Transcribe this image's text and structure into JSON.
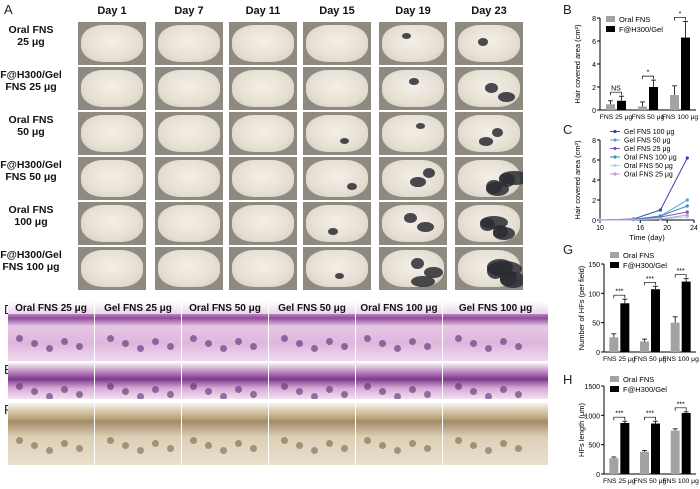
{
  "panel_letters": {
    "A": "A",
    "B": "B",
    "C": "C",
    "D": "D",
    "E": "E",
    "F": "F",
    "G": "G",
    "H": "H"
  },
  "days": [
    "Day 1",
    "Day 7",
    "Day 11",
    "Day 15",
    "Day 19",
    "Day 23"
  ],
  "row_labels": [
    [
      "Oral FNS",
      "25 μg"
    ],
    [
      "F@H300/Gel",
      "FNS 25 μg"
    ],
    [
      "Oral FNS",
      "50 μg"
    ],
    [
      "F@H300/Gel",
      "FNS 50 μg"
    ],
    [
      "Oral FNS",
      "100 μg"
    ],
    [
      "F@H300/Gel",
      "FNS 100 μg"
    ]
  ],
  "hair_cover_fraction": [
    [
      0,
      0,
      0,
      0,
      0.05,
      0.15
    ],
    [
      0,
      0,
      0,
      0,
      0.12,
      0.3
    ],
    [
      0,
      0,
      0,
      0.06,
      0.05,
      0.2
    ],
    [
      0,
      0,
      0,
      0.12,
      0.28,
      0.5
    ],
    [
      0,
      0,
      0,
      0.1,
      0.3,
      0.45
    ],
    [
      0,
      0,
      0,
      0.08,
      0.35,
      0.6
    ]
  ],
  "histology_labels": [
    "Oral FNS 25 μg",
    "Gel FNS 25 μg",
    "Oral FNS 50 μg",
    "Gel FNS 50 μg",
    "Oral FNS 100 μg",
    "Gel FNS 100 μg"
  ],
  "colors": {
    "oral": "#a3a3a3",
    "gel": "#000000",
    "he_stain": "#c89bc6",
    "ihc_stain": "#d6c7ad"
  },
  "chart_data": [
    {
      "panel": "B",
      "type": "bar",
      "categories": [
        "FNS 25 μg",
        "FNS 50 μg",
        "FNS 100 μg"
      ],
      "series": [
        {
          "name": "Oral FNS",
          "values": [
            0.5,
            0.3,
            1.3
          ],
          "errors": [
            0.3,
            0.4,
            0.8
          ]
        },
        {
          "name": "F@H300/Gel",
          "values": [
            0.8,
            2.0,
            6.3
          ],
          "errors": [
            0.4,
            0.6,
            1.4
          ]
        }
      ],
      "significance": [
        "NS",
        "*",
        "*"
      ],
      "ylabel": "Hair covered area (cm²)",
      "ylim": [
        0,
        8
      ],
      "yticks": [
        0,
        2,
        4,
        6,
        8
      ]
    },
    {
      "panel": "C",
      "type": "line",
      "x": [
        10,
        15,
        19,
        23
      ],
      "series": [
        {
          "name": "Gel FNS 100 μg",
          "color": "#3b3fb0",
          "values": [
            0,
            0.1,
            1.0,
            6.2
          ]
        },
        {
          "name": "Gel FNS 50 μg",
          "color": "#5aa0d8",
          "values": [
            0,
            0.05,
            0.4,
            2.0
          ]
        },
        {
          "name": "Gel FNS 25 μg",
          "color": "#7a5ab8",
          "values": [
            0,
            0.03,
            0.3,
            0.8
          ]
        },
        {
          "name": "Oral FNS 100 μg",
          "color": "#3c8cc0",
          "values": [
            0,
            0.05,
            0.4,
            1.4
          ]
        },
        {
          "name": "Oral FNS 50 μg",
          "color": "#a8d8e8",
          "values": [
            0,
            0.02,
            0.1,
            0.3
          ]
        },
        {
          "name": "Oral FNS 25 μg",
          "color": "#c09cd0",
          "values": [
            0,
            0.02,
            0.1,
            0.5
          ]
        }
      ],
      "xlabel": "Time (day)",
      "ylabel": "Hair covered area (cm²)",
      "xticks": [
        10,
        16,
        20,
        24
      ],
      "yticks": [
        0,
        2,
        4,
        6,
        8
      ],
      "ylim": [
        0,
        8
      ],
      "xlim": [
        10,
        24
      ]
    },
    {
      "panel": "G",
      "type": "bar",
      "categories": [
        "FNS 25 μg",
        "FNS 50 μg",
        "FNS 100 μg"
      ],
      "series": [
        {
          "name": "Oral FNS",
          "values": [
            25,
            18,
            50
          ],
          "errors": [
            6,
            4,
            10
          ]
        },
        {
          "name": "F@H300/Gel",
          "values": [
            83,
            107,
            120
          ],
          "errors": [
            7,
            5,
            5
          ]
        }
      ],
      "significance": [
        "***",
        "***",
        "***"
      ],
      "ylabel": "Number of HFs (per field)",
      "ylim": [
        0,
        150
      ],
      "yticks": [
        0,
        50,
        100,
        150
      ]
    },
    {
      "panel": "H",
      "type": "bar",
      "categories": [
        "FNS 25 μg",
        "FNS 50 μg",
        "FNS 100 μg"
      ],
      "series": [
        {
          "name": "Oral FNS",
          "values": [
            270,
            380,
            740
          ],
          "errors": [
            20,
            20,
            30
          ]
        },
        {
          "name": "F@H300/Gel",
          "values": [
            870,
            860,
            1040
          ],
          "errors": [
            30,
            40,
            20
          ]
        }
      ],
      "significance": [
        "***",
        "***",
        "***"
      ],
      "ylabel": "HFs length (μm)",
      "ylim": [
        0,
        1500
      ],
      "yticks": [
        0,
        500,
        1000,
        1500
      ]
    }
  ]
}
